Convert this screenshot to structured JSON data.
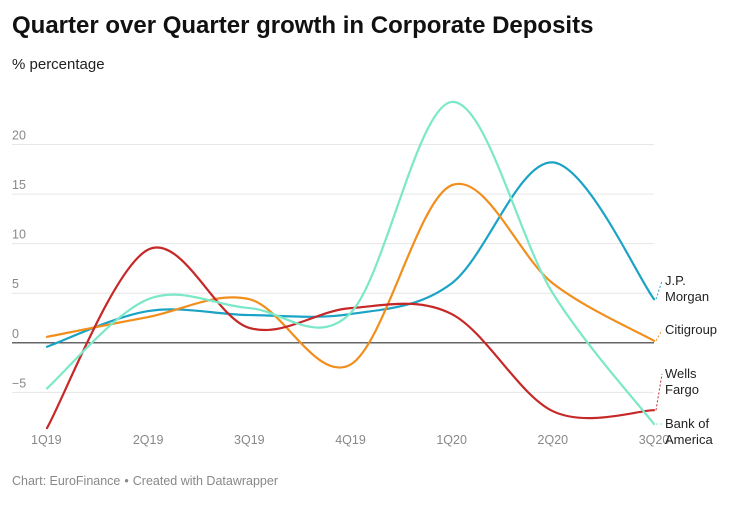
{
  "title": "Quarter over Quarter growth in Corporate Deposits",
  "subtitle": "% percentage",
  "footer": {
    "chart_by": "Chart: EuroFinance",
    "created_with": "Created with Datawrapper"
  },
  "chart_data": {
    "type": "line",
    "title": "Quarter over Quarter growth in Corporate Deposits",
    "subtitle": "% percentage",
    "categories": [
      "1Q19",
      "2Q19",
      "3Q19",
      "4Q19",
      "1Q20",
      "2Q20",
      "3Q20"
    ],
    "y_ticks": [
      -5,
      0,
      5,
      10,
      15,
      20
    ],
    "ylim": [
      -9,
      25
    ],
    "grid": true,
    "legend_placement": "right, direct labels at line ends",
    "series": [
      {
        "name": "J.P. Morgan",
        "label_lines": [
          "J.P.",
          "Morgan"
        ],
        "color": "#1ba3c6",
        "values": [
          -0.4,
          3.2,
          2.8,
          2.9,
          6.0,
          18.2,
          4.4
        ]
      },
      {
        "name": "Citigroup",
        "label_lines": [
          "Citigroup"
        ],
        "color": "#f28e1c",
        "values": [
          0.6,
          2.6,
          4.4,
          -2.2,
          15.9,
          6.0,
          0.2
        ]
      },
      {
        "name": "Wells Fargo",
        "label_lines": [
          "Wells",
          "Fargo"
        ],
        "color": "#c62828",
        "values": [
          -8.6,
          9.4,
          1.5,
          3.5,
          2.9,
          -6.9,
          -6.8
        ]
      },
      {
        "name": "Bank of America",
        "label_lines": [
          "Bank of",
          "America"
        ],
        "color": "#7be8c8",
        "values": [
          -4.6,
          4.4,
          3.5,
          3.0,
          24.3,
          5.0,
          -8.2
        ]
      }
    ]
  }
}
